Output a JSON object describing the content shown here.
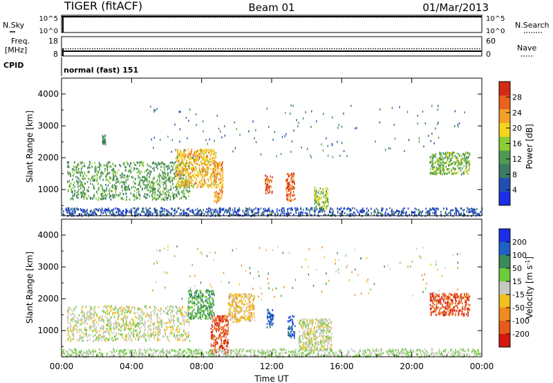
{
  "header": {
    "station": "TIGER (fitACF)",
    "beam": "Beam 01",
    "date": "01/Mar/2013"
  },
  "panels": {
    "nsky": {
      "left_label": "N.Sky",
      "right_label": "N.Search",
      "left_ticks": [
        "10^5",
        "10^0"
      ],
      "right_ticks": [
        "10^5",
        "10^0"
      ]
    },
    "freq": {
      "left_label_1": "Freq.",
      "left_label_2": "[MHz]",
      "right_label": "Nave",
      "left_ticks": [
        "18",
        "8"
      ],
      "right_ticks": [
        "60",
        "0"
      ]
    },
    "cpid": {
      "left_label": "CPID",
      "mode_text": "normal (fast) 151"
    }
  },
  "axis": {
    "xlabel": "Time UT",
    "x_ticks": [
      "00:00",
      "04:00",
      "08:00",
      "12:00",
      "16:00",
      "20:00",
      "00:00"
    ],
    "ylabel": "Slant Range [km]",
    "y_ticks": [
      "1000",
      "2000",
      "3000",
      "4000"
    ]
  },
  "colorbars": {
    "power": {
      "label": "Power [dB]",
      "ticks": [
        "28",
        "24",
        "20",
        "16",
        "12",
        "8",
        "4"
      ],
      "colors": [
        "#1a2ee8",
        "#1f4fb0",
        "#3a7a66",
        "#4f9a52",
        "#8ccc34",
        "#f4d41e",
        "#f0a02a",
        "#e8641c",
        "#d42a16"
      ]
    },
    "velocity": {
      "label": "Velocity [m s^-1]",
      "ticks": [
        "200",
        "100",
        "50",
        "15",
        "-15",
        "-50",
        "-100",
        "-200"
      ],
      "colors": [
        "#1a2ee8",
        "#2060c8",
        "#3a8a5a",
        "#6ccc3a",
        "#c8c8c0",
        "#f0c020",
        "#f08a20",
        "#e85a1c",
        "#d41810"
      ]
    }
  },
  "chart_data": [
    {
      "type": "heatmap",
      "name": "power",
      "x_range_hours": [
        0,
        24
      ],
      "y_range_km": [
        180,
        4500
      ],
      "units": "dB",
      "features": [
        {
          "t_start": 0.3,
          "t_end": 7.3,
          "r_start": 700,
          "r_end": 1900,
          "value": 12
        },
        {
          "t_start": 6.5,
          "t_end": 8.8,
          "r_start": 1100,
          "r_end": 2300,
          "value": 22
        },
        {
          "t_start": 8.7,
          "t_end": 9.2,
          "r_start": 600,
          "r_end": 1900,
          "value": 24
        },
        {
          "t_start": 11.6,
          "t_end": 12.0,
          "r_start": 900,
          "r_end": 1500,
          "value": 28
        },
        {
          "t_start": 12.8,
          "t_end": 13.3,
          "r_start": 650,
          "r_end": 1550,
          "value": 28
        },
        {
          "t_start": 14.4,
          "t_end": 15.2,
          "r_start": 400,
          "r_end": 1100,
          "value": 16
        },
        {
          "t_start": 21.0,
          "t_end": 23.3,
          "r_start": 1500,
          "r_end": 2200,
          "value": 14
        },
        {
          "t_start": 2.3,
          "t_end": 2.5,
          "r_start": 2450,
          "r_end": 2750,
          "value": 10
        },
        {
          "t_start": 0.0,
          "t_end": 24.0,
          "r_start": 200,
          "r_end": 450,
          "value": 4
        }
      ]
    },
    {
      "type": "heatmap",
      "name": "velocity",
      "x_range_hours": [
        0,
        24
      ],
      "y_range_km": [
        180,
        4500
      ],
      "units": "m s^-1",
      "features": [
        {
          "t_start": 0.3,
          "t_end": 7.3,
          "r_start": 700,
          "r_end": 1800,
          "value": 0
        },
        {
          "t_start": 7.2,
          "t_end": 8.7,
          "r_start": 1400,
          "r_end": 2300,
          "value": 100
        },
        {
          "t_start": 8.5,
          "t_end": 9.5,
          "r_start": 300,
          "r_end": 1500,
          "value": -200
        },
        {
          "t_start": 9.5,
          "t_end": 11.0,
          "r_start": 1300,
          "r_end": 2200,
          "value": -60
        },
        {
          "t_start": 11.7,
          "t_end": 12.1,
          "r_start": 1100,
          "r_end": 1700,
          "value": 200
        },
        {
          "t_start": 12.9,
          "t_end": 13.3,
          "r_start": 800,
          "r_end": 1500,
          "value": 200
        },
        {
          "t_start": 13.5,
          "t_end": 15.4,
          "r_start": 400,
          "r_end": 1400,
          "value": 0
        },
        {
          "t_start": 21.0,
          "t_end": 23.3,
          "r_start": 1500,
          "r_end": 2200,
          "value": -200
        },
        {
          "t_start": 0.0,
          "t_end": 24.0,
          "r_start": 200,
          "r_end": 450,
          "value": 30
        }
      ]
    }
  ]
}
